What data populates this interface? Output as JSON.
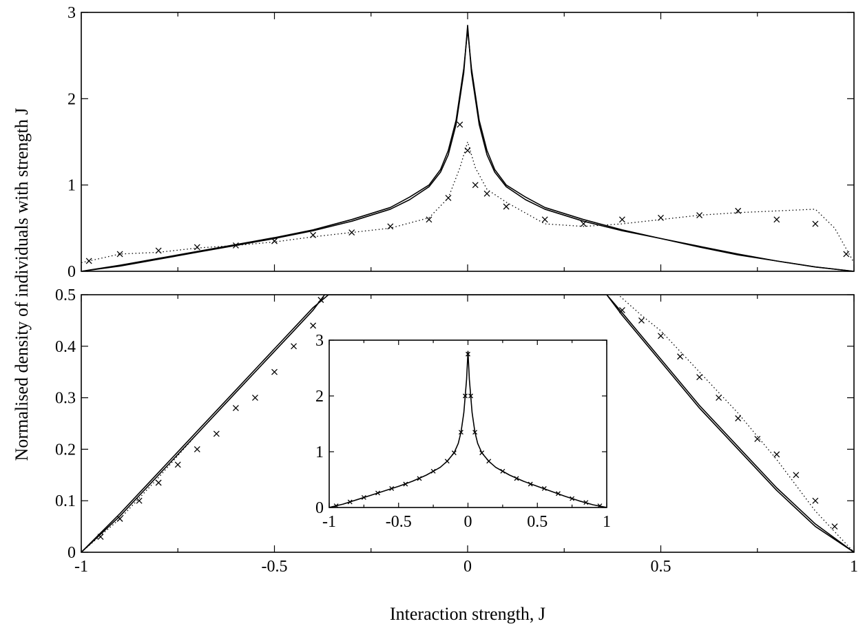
{
  "chart_data": [
    {
      "panel": "top",
      "type": "line",
      "xlim": [
        -1,
        1
      ],
      "ylim": [
        0,
        3
      ],
      "xticks": [
        -1,
        -0.5,
        0,
        0.5,
        1
      ],
      "yticks": [
        0,
        1,
        2,
        3
      ],
      "ytick_labels": [
        "0",
        "1",
        "2",
        "3"
      ],
      "series": [
        {
          "style": "solid",
          "x": [
            -1,
            -0.9,
            -0.8,
            -0.7,
            -0.6,
            -0.5,
            -0.4,
            -0.3,
            -0.2,
            -0.15,
            -0.1,
            -0.07,
            -0.05,
            -0.03,
            -0.01,
            0,
            0.01,
            0.03,
            0.05,
            0.07,
            0.1,
            0.15,
            0.2,
            0.3,
            0.4,
            0.5,
            0.6,
            0.7,
            0.8,
            0.9,
            1
          ],
          "y": [
            0,
            0.06,
            0.14,
            0.22,
            0.3,
            0.38,
            0.47,
            0.58,
            0.72,
            0.83,
            0.98,
            1.15,
            1.35,
            1.7,
            2.3,
            2.85,
            2.3,
            1.7,
            1.35,
            1.15,
            0.98,
            0.83,
            0.72,
            0.58,
            0.47,
            0.38,
            0.29,
            0.2,
            0.12,
            0.05,
            0
          ]
        },
        {
          "style": "solid",
          "x": [
            -1,
            -0.9,
            -0.8,
            -0.7,
            -0.6,
            -0.5,
            -0.4,
            -0.3,
            -0.2,
            -0.15,
            -0.1,
            -0.07,
            -0.05,
            -0.03,
            -0.01,
            0,
            0.01,
            0.03,
            0.05,
            0.07,
            0.1,
            0.15,
            0.2,
            0.3,
            0.4,
            0.5,
            0.6,
            0.7,
            0.8,
            0.9,
            1
          ],
          "y": [
            0,
            0.07,
            0.15,
            0.23,
            0.31,
            0.39,
            0.48,
            0.6,
            0.74,
            0.86,
            1.0,
            1.18,
            1.4,
            1.75,
            2.35,
            2.8,
            2.35,
            1.75,
            1.4,
            1.18,
            1.0,
            0.86,
            0.74,
            0.6,
            0.48,
            0.38,
            0.28,
            0.19,
            0.12,
            0.05,
            0
          ]
        },
        {
          "style": "dotted",
          "x": [
            -1,
            -0.9,
            -0.8,
            -0.7,
            -0.6,
            -0.5,
            -0.4,
            -0.3,
            -0.2,
            -0.1,
            -0.05,
            -0.02,
            0,
            0.02,
            0.05,
            0.1,
            0.2,
            0.3,
            0.4,
            0.5,
            0.6,
            0.7,
            0.8,
            0.9,
            0.95,
            1
          ],
          "y": [
            0.1,
            0.2,
            0.22,
            0.27,
            0.3,
            0.34,
            0.4,
            0.45,
            0.5,
            0.62,
            0.85,
            1.2,
            1.5,
            1.2,
            0.95,
            0.8,
            0.55,
            0.52,
            0.55,
            0.6,
            0.65,
            0.68,
            0.7,
            0.72,
            0.5,
            0.1
          ]
        },
        {
          "style": "crosses",
          "x": [
            -0.98,
            -0.9,
            -0.8,
            -0.7,
            -0.6,
            -0.5,
            -0.4,
            -0.3,
            -0.2,
            -0.1,
            -0.05,
            -0.02,
            0,
            0.02,
            0.05,
            0.1,
            0.2,
            0.3,
            0.4,
            0.5,
            0.6,
            0.7,
            0.8,
            0.9,
            0.98
          ],
          "y": [
            0.12,
            0.2,
            0.24,
            0.28,
            0.3,
            0.35,
            0.42,
            0.45,
            0.52,
            0.6,
            0.85,
            1.7,
            1.4,
            1.0,
            0.9,
            0.75,
            0.6,
            0.55,
            0.6,
            0.62,
            0.65,
            0.7,
            0.6,
            0.55,
            0.2
          ]
        }
      ]
    },
    {
      "panel": "bottom",
      "type": "line",
      "xlim": [
        -1,
        1
      ],
      "ylim": [
        0,
        0.5
      ],
      "xticks": [
        -1,
        -0.5,
        0,
        0.5,
        1
      ],
      "xtick_labels": [
        "-1",
        "-0.5",
        "0",
        "0.5",
        "1"
      ],
      "yticks": [
        0,
        0.1,
        0.2,
        0.3,
        0.4,
        0.5
      ],
      "ytick_labels": [
        "0",
        "0.1",
        "0.2",
        "0.3",
        "0.4",
        "0.5"
      ],
      "xlabel": "Interaction strength, J",
      "ylabel": "Normalised density of individuals with strength J",
      "series": [
        {
          "style": "solid",
          "x": [
            -1,
            -0.9,
            -0.8,
            -0.7,
            -0.6,
            -0.5,
            -0.45,
            -0.4,
            -0.37,
            0.36,
            0.4,
            0.5,
            0.6,
            0.7,
            0.8,
            0.9,
            1
          ],
          "y": [
            0,
            0.07,
            0.15,
            0.23,
            0.31,
            0.39,
            0.43,
            0.47,
            0.5,
            0.5,
            0.46,
            0.37,
            0.28,
            0.2,
            0.12,
            0.05,
            0
          ]
        },
        {
          "style": "solid",
          "x": [
            -1,
            -0.9,
            -0.8,
            -0.7,
            -0.6,
            -0.5,
            -0.45,
            -0.4,
            -0.36,
            0.36,
            0.4,
            0.5,
            0.6,
            0.7,
            0.8,
            0.9,
            1
          ],
          "y": [
            0,
            0.075,
            0.155,
            0.235,
            0.315,
            0.395,
            0.435,
            0.475,
            0.5,
            0.5,
            0.465,
            0.375,
            0.285,
            0.205,
            0.125,
            0.055,
            0
          ]
        },
        {
          "style": "dotted",
          "x": [
            -1,
            -0.9,
            -0.8,
            -0.7,
            -0.6,
            -0.5,
            -0.45,
            -0.4,
            -0.37,
            0.39,
            0.45,
            0.5,
            0.6,
            0.7,
            0.8,
            0.9,
            1
          ],
          "y": [
            0,
            0.065,
            0.145,
            0.23,
            0.31,
            0.39,
            0.43,
            0.47,
            0.5,
            0.5,
            0.46,
            0.43,
            0.35,
            0.27,
            0.18,
            0.08,
            0
          ]
        },
        {
          "style": "crosses",
          "x": [
            -1,
            -0.95,
            -0.9,
            -0.85,
            -0.8,
            -0.75,
            -0.7,
            -0.65,
            -0.6,
            -0.55,
            -0.5,
            -0.45,
            -0.4,
            -0.38,
            0.4,
            0.45,
            0.5,
            0.55,
            0.6,
            0.65,
            0.7,
            0.75,
            0.8,
            0.85,
            0.9,
            0.95,
            1
          ],
          "y": [
            0,
            0.03,
            0.065,
            0.1,
            0.135,
            0.17,
            0.2,
            0.23,
            0.28,
            0.3,
            0.35,
            0.4,
            0.44,
            0.49,
            0.47,
            0.45,
            0.42,
            0.38,
            0.34,
            0.3,
            0.26,
            0.22,
            0.19,
            0.15,
            0.1,
            0.05,
            0
          ]
        }
      ]
    },
    {
      "panel": "inset",
      "type": "line",
      "xlim": [
        -1,
        1
      ],
      "ylim": [
        0,
        3
      ],
      "xticks": [
        -1,
        -0.5,
        0,
        0.5,
        1
      ],
      "xtick_labels": [
        "-1",
        "-0.5",
        "0",
        "0.5",
        "1"
      ],
      "yticks": [
        0,
        1,
        2,
        3
      ],
      "ytick_labels": [
        "0",
        "1",
        "2",
        "3"
      ],
      "series": [
        {
          "style": "solid",
          "x": [
            -1,
            -0.9,
            -0.8,
            -0.7,
            -0.6,
            -0.5,
            -0.4,
            -0.3,
            -0.2,
            -0.15,
            -0.1,
            -0.07,
            -0.05,
            -0.03,
            -0.01,
            0,
            0.01,
            0.03,
            0.05,
            0.07,
            0.1,
            0.15,
            0.2,
            0.3,
            0.4,
            0.5,
            0.6,
            0.7,
            0.8,
            0.9,
            1
          ],
          "y": [
            0,
            0.06,
            0.14,
            0.22,
            0.3,
            0.38,
            0.47,
            0.58,
            0.72,
            0.83,
            0.98,
            1.15,
            1.35,
            1.7,
            2.3,
            2.8,
            2.3,
            1.7,
            1.35,
            1.15,
            0.98,
            0.83,
            0.72,
            0.58,
            0.47,
            0.38,
            0.29,
            0.2,
            0.12,
            0.05,
            0
          ]
        },
        {
          "style": "crosses",
          "x": [
            -0.95,
            -0.85,
            -0.75,
            -0.65,
            -0.55,
            -0.45,
            -0.35,
            -0.25,
            -0.15,
            -0.1,
            -0.05,
            -0.02,
            0,
            0.02,
            0.05,
            0.1,
            0.15,
            0.25,
            0.35,
            0.45,
            0.55,
            0.65,
            0.75,
            0.85,
            0.95
          ],
          "y": [
            0.03,
            0.1,
            0.18,
            0.26,
            0.34,
            0.42,
            0.52,
            0.65,
            0.83,
            0.98,
            1.35,
            2.0,
            2.75,
            2.0,
            1.35,
            0.98,
            0.83,
            0.65,
            0.52,
            0.42,
            0.34,
            0.25,
            0.16,
            0.09,
            0.03
          ]
        }
      ]
    }
  ]
}
